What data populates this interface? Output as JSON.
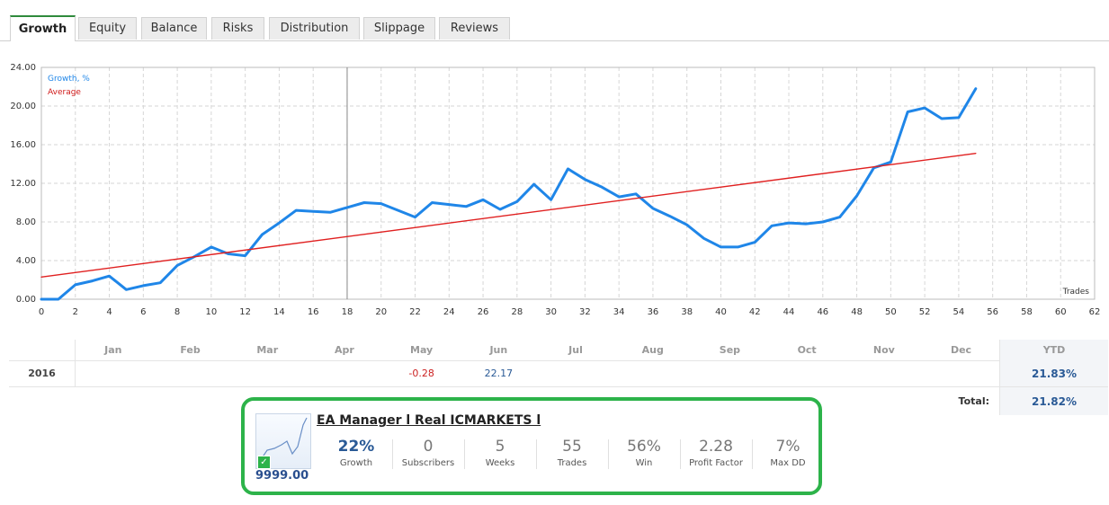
{
  "tabs": [
    {
      "label": "Growth",
      "active": true
    },
    {
      "label": "Equity",
      "active": false
    },
    {
      "label": "Balance",
      "active": false
    },
    {
      "label": "Risks",
      "active": false
    },
    {
      "label": "Distribution",
      "active": false
    },
    {
      "label": "Slippage",
      "active": false
    },
    {
      "label": "Reviews",
      "active": false
    }
  ],
  "chart_data": {
    "type": "line",
    "legend": [
      "Growth, %",
      "Average"
    ],
    "legend_placement": "top-left",
    "xlabel": "Trades",
    "xlim": [
      0,
      62
    ],
    "ylim": [
      0,
      24
    ],
    "xticks": [
      0,
      2,
      4,
      6,
      8,
      10,
      12,
      14,
      16,
      18,
      20,
      22,
      24,
      26,
      28,
      30,
      32,
      34,
      36,
      38,
      40,
      42,
      44,
      46,
      48,
      50,
      52,
      54,
      56,
      58,
      60,
      62
    ],
    "yticks": [
      "0.00",
      "4.00",
      "8.00",
      "12.00",
      "16.00",
      "20.00",
      "24.00"
    ],
    "grid": true,
    "series": [
      {
        "name": "Growth, %",
        "color": "#1f86e8",
        "x": [
          0,
          1,
          2,
          3,
          4,
          5,
          6,
          7,
          8,
          9,
          10,
          11,
          12,
          13,
          14,
          15,
          16,
          17,
          18,
          19,
          20,
          21,
          22,
          23,
          24,
          25,
          26,
          27,
          28,
          29,
          30,
          31,
          32,
          33,
          34,
          35,
          36,
          37,
          38,
          39,
          40,
          41,
          42,
          43,
          44,
          45,
          46,
          47,
          48,
          49,
          50,
          51,
          52,
          53,
          54,
          55
        ],
        "y": [
          0,
          -0.2,
          1.5,
          1.9,
          2.4,
          1.0,
          1.4,
          1.7,
          3.5,
          4.4,
          5.4,
          4.7,
          4.5,
          6.7,
          7.9,
          9.2,
          9.1,
          9.0,
          9.5,
          10.0,
          9.9,
          9.2,
          8.5,
          10.0,
          9.8,
          9.6,
          10.3,
          9.3,
          10.1,
          11.9,
          10.3,
          13.5,
          12.4,
          11.6,
          10.6,
          10.9,
          9.4,
          8.6,
          7.7,
          6.3,
          5.4,
          5.4,
          5.9,
          7.6,
          7.9,
          7.8,
          8.0,
          8.5,
          10.7,
          13.6,
          14.2,
          19.4,
          19.8,
          18.7,
          18.8,
          21.8
        ]
      },
      {
        "name": "Average",
        "color": "#e02020",
        "x": [
          0,
          55
        ],
        "y": [
          2.3,
          15.1
        ]
      }
    ],
    "crosshair_x": 18
  },
  "monthly": {
    "months": [
      "Jan",
      "Feb",
      "Mar",
      "Apr",
      "May",
      "Jun",
      "Jul",
      "Aug",
      "Sep",
      "Oct",
      "Nov",
      "Dec"
    ],
    "ytd_label": "YTD",
    "row": {
      "year": "2016",
      "values": [
        "",
        "",
        "",
        "",
        "-0.28",
        "22.17",
        "",
        "",
        "",
        "",
        "",
        ""
      ],
      "ytd": "21.83%"
    },
    "total_label": "Total:",
    "total_value": "21.82%"
  },
  "widget": {
    "title": "EA Manager l Real ICMARKETS l",
    "price": "9999.00",
    "accent": "#2db34a",
    "stats": [
      {
        "value": "22%",
        "label": "Growth"
      },
      {
        "value": "0",
        "label": "Subscribers"
      },
      {
        "value": "5",
        "label": "Weeks"
      },
      {
        "value": "55",
        "label": "Trades"
      },
      {
        "value": "56%",
        "label": "Win"
      },
      {
        "value": "2.28",
        "label": "Profit Factor"
      },
      {
        "value": "7%",
        "label": "Max DD"
      }
    ]
  }
}
